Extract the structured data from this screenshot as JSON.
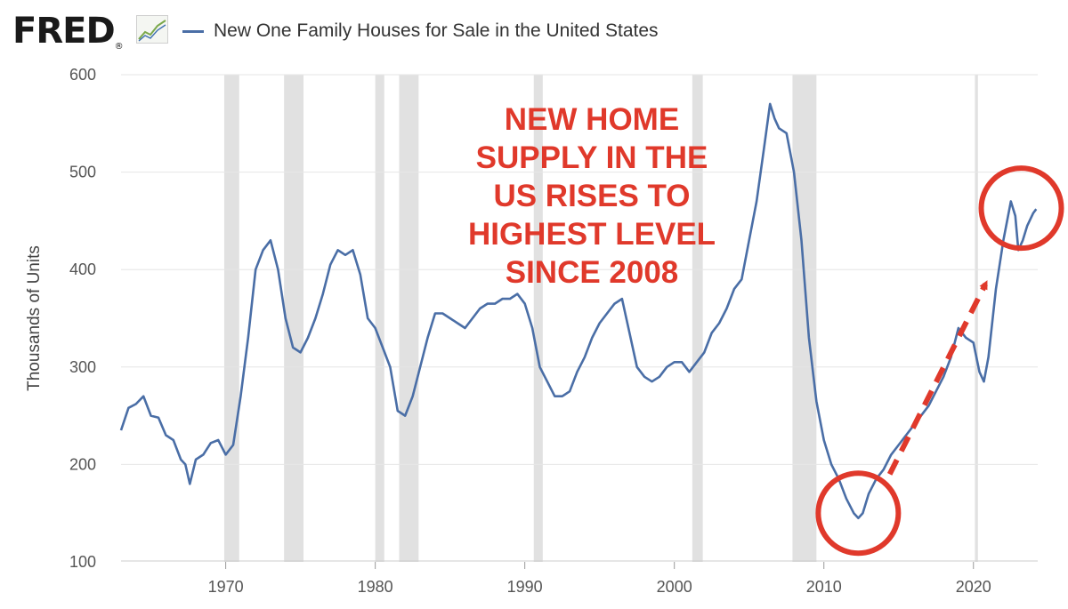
{
  "header": {
    "logo_text": "FRED",
    "logo_trademark": "®",
    "logo_icon": "trend-line-chart-icon"
  },
  "colors": {
    "series": "#4a6ea6",
    "recession": "#e1e1e1",
    "annotation": "#e0392b",
    "grid": "#e6e6e6"
  },
  "chart_data": {
    "type": "line",
    "title": "",
    "legend": [
      "New One Family Houses for Sale in the United States"
    ],
    "legend_position": "top-left",
    "xlabel": "",
    "ylabel": "Thousands of Units",
    "xlim": [
      1963,
      2024.3
    ],
    "ylim": [
      100,
      600
    ],
    "x_ticks": [
      "1970",
      "1980",
      "1990",
      "2000",
      "2010",
      "2020"
    ],
    "x_tick_values": [
      1970,
      1980,
      1990,
      2000,
      2010,
      2020
    ],
    "y_ticks": [
      "100",
      "200",
      "300",
      "400",
      "500",
      "600"
    ],
    "y_tick_values": [
      100,
      200,
      300,
      400,
      500,
      600
    ],
    "grid": "horizontal",
    "recessions": [
      [
        1969.9,
        1970.9
      ],
      [
        1973.9,
        1975.2
      ],
      [
        1980.0,
        1980.6
      ],
      [
        1981.6,
        1982.9
      ],
      [
        1990.6,
        1991.2
      ],
      [
        2001.2,
        2001.9
      ],
      [
        2007.9,
        2009.5
      ],
      [
        2020.1,
        2020.3
      ]
    ],
    "series": [
      {
        "name": "New One Family Houses for Sale in the United States",
        "x": [
          1963.0,
          1963.5,
          1964.0,
          1964.5,
          1965.0,
          1965.5,
          1966.0,
          1966.5,
          1967.0,
          1967.3,
          1967.6,
          1968.0,
          1968.5,
          1969.0,
          1969.5,
          1970.0,
          1970.5,
          1971.0,
          1971.5,
          1972.0,
          1972.5,
          1973.0,
          1973.5,
          1974.0,
          1974.5,
          1975.0,
          1975.5,
          1976.0,
          1976.5,
          1977.0,
          1977.5,
          1978.0,
          1978.5,
          1979.0,
          1979.5,
          1980.0,
          1980.5,
          1981.0,
          1981.5,
          1982.0,
          1982.5,
          1983.0,
          1983.5,
          1984.0,
          1984.5,
          1985.0,
          1985.5,
          1986.0,
          1986.5,
          1987.0,
          1987.5,
          1988.0,
          1988.5,
          1989.0,
          1989.5,
          1990.0,
          1990.5,
          1991.0,
          1991.5,
          1992.0,
          1992.5,
          1993.0,
          1993.5,
          1994.0,
          1994.5,
          1995.0,
          1995.5,
          1996.0,
          1996.5,
          1997.0,
          1997.5,
          1998.0,
          1998.5,
          1999.0,
          1999.5,
          2000.0,
          2000.5,
          2001.0,
          2001.5,
          2002.0,
          2002.5,
          2003.0,
          2003.5,
          2004.0,
          2004.5,
          2005.0,
          2005.5,
          2006.0,
          2006.4,
          2006.7,
          2007.0,
          2007.5,
          2008.0,
          2008.5,
          2009.0,
          2009.5,
          2010.0,
          2010.5,
          2011.0,
          2011.5,
          2012.0,
          2012.3,
          2012.6,
          2013.0,
          2013.5,
          2014.0,
          2014.5,
          2015.0,
          2015.5,
          2016.0,
          2016.5,
          2017.0,
          2017.5,
          2018.0,
          2018.5,
          2019.0,
          2019.5,
          2020.0,
          2020.4,
          2020.7,
          2021.0,
          2021.5,
          2022.0,
          2022.5,
          2022.8,
          2023.0,
          2023.3,
          2023.6,
          2024.0,
          2024.2
        ],
        "values": [
          235,
          258,
          262,
          270,
          250,
          248,
          230,
          225,
          205,
          200,
          180,
          205,
          210,
          222,
          225,
          210,
          220,
          270,
          330,
          400,
          420,
          430,
          400,
          350,
          320,
          315,
          330,
          350,
          375,
          405,
          420,
          415,
          420,
          395,
          350,
          340,
          320,
          300,
          255,
          250,
          270,
          300,
          330,
          355,
          355,
          350,
          345,
          340,
          350,
          360,
          365,
          365,
          370,
          370,
          375,
          365,
          340,
          300,
          285,
          270,
          270,
          275,
          295,
          310,
          330,
          345,
          355,
          365,
          370,
          335,
          300,
          290,
          285,
          290,
          300,
          305,
          305,
          295,
          305,
          315,
          335,
          345,
          360,
          380,
          390,
          430,
          470,
          525,
          570,
          555,
          545,
          540,
          500,
          430,
          330,
          265,
          225,
          200,
          185,
          165,
          150,
          145,
          150,
          170,
          185,
          195,
          210,
          220,
          230,
          240,
          250,
          260,
          275,
          290,
          310,
          340,
          330,
          325,
          295,
          285,
          310,
          380,
          430,
          470,
          455,
          420,
          430,
          445,
          458,
          462
        ]
      }
    ],
    "annotations": {
      "text_lines": [
        "NEW HOME",
        "SUPPLY IN THE",
        "US RISES TO",
        "HIGHEST LEVEL",
        "SINCE 2008"
      ],
      "circles": [
        {
          "label": "2012 low",
          "cx": 2012.3,
          "cy": 150
        },
        {
          "label": "2022 peak",
          "cx": 2023.2,
          "cy": 463
        }
      ],
      "arrow": {
        "from": [
          2014.4,
          190
        ],
        "to": [
          2020.8,
          385
        ]
      }
    }
  }
}
